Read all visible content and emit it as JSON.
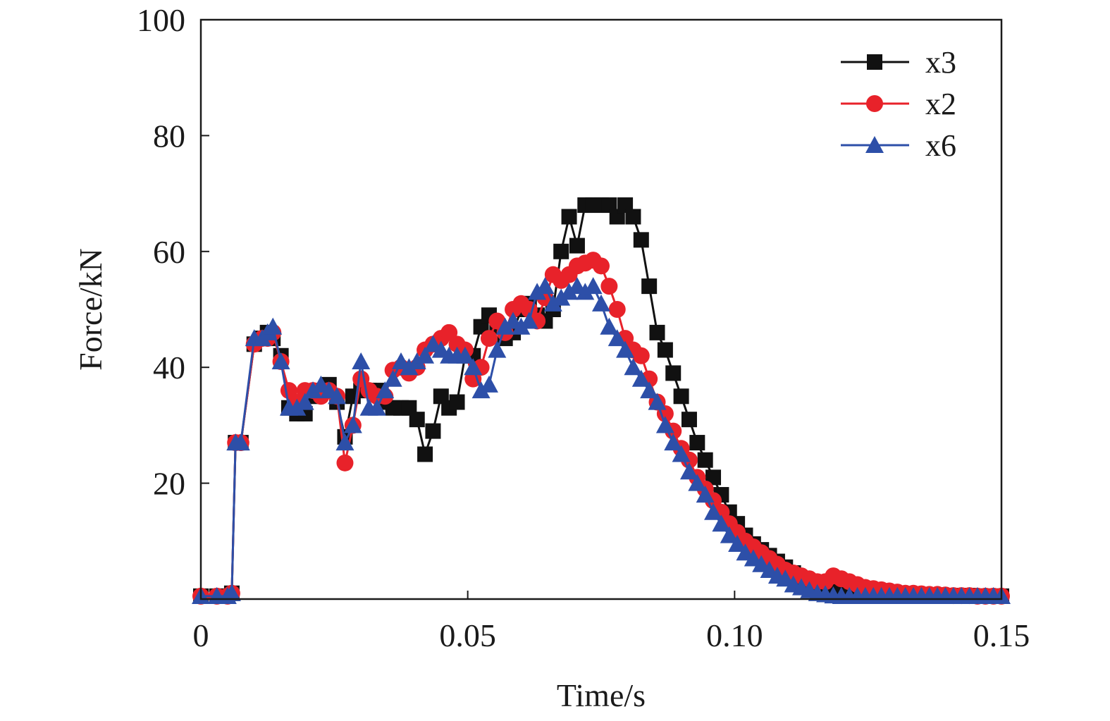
{
  "chart_data": {
    "type": "line",
    "xlabel": "Time/s",
    "ylabel": "Force/kN",
    "xlim": [
      0,
      0.15
    ],
    "ylim": [
      0,
      100
    ],
    "xticks": [
      0,
      0.05,
      0.1,
      0.15
    ],
    "xtick_labels": [
      "0",
      "0.05",
      "0.10",
      "0.15"
    ],
    "yticks": [
      20,
      40,
      60,
      80,
      100
    ],
    "ytick_labels": [
      "20",
      "40",
      "60",
      "80",
      "100"
    ],
    "grid": false,
    "legend_position": "top-right",
    "series": [
      {
        "name": "x3",
        "color": "#111111",
        "marker": "square",
        "x": [
          0,
          0.003,
          0.005,
          0.0058,
          0.0065,
          0.0075,
          0.01,
          0.0115,
          0.0125,
          0.0135,
          0.015,
          0.0165,
          0.018,
          0.0195,
          0.021,
          0.0225,
          0.024,
          0.0255,
          0.027,
          0.0285,
          0.03,
          0.0315,
          0.033,
          0.0345,
          0.036,
          0.0375,
          0.039,
          0.0405,
          0.042,
          0.0435,
          0.045,
          0.0465,
          0.048,
          0.0495,
          0.051,
          0.0525,
          0.054,
          0.0555,
          0.057,
          0.0585,
          0.06,
          0.0615,
          0.063,
          0.0645,
          0.066,
          0.0675,
          0.069,
          0.0705,
          0.072,
          0.0735,
          0.075,
          0.0765,
          0.078,
          0.0795,
          0.081,
          0.0825,
          0.084,
          0.0855,
          0.087,
          0.0885,
          0.09,
          0.0915,
          0.093,
          0.0945,
          0.096,
          0.0975,
          0.099,
          0.1005,
          0.102,
          0.1035,
          0.105,
          0.1065,
          0.108,
          0.1095,
          0.111,
          0.1125,
          0.114,
          0.1155,
          0.117,
          0.1185,
          0.12,
          0.1215,
          0.123,
          0.1245,
          0.126,
          0.1275,
          0.129,
          0.1305,
          0.132,
          0.1335,
          0.135,
          0.1365,
          0.138,
          0.1395,
          0.141,
          0.1425,
          0.144,
          0.1455,
          0.147,
          0.1485,
          0.15
        ],
        "y": [
          0.5,
          0.5,
          0.5,
          1,
          27,
          27,
          44,
          45,
          46,
          45,
          42,
          33,
          32,
          32,
          35,
          36,
          37,
          34,
          28,
          35,
          36,
          36,
          36,
          34,
          33,
          33,
          33,
          31,
          25,
          29,
          35,
          33,
          34,
          42,
          42,
          47,
          49,
          47,
          45,
          46,
          50,
          51,
          49,
          48,
          50,
          60,
          66,
          61,
          68,
          68,
          68,
          68,
          66,
          68,
          66,
          62,
          54,
          46,
          43,
          39,
          35,
          31,
          27,
          24,
          21,
          18,
          15,
          13,
          11,
          9.5,
          8.5,
          7.5,
          6.5,
          5.5,
          4.5,
          3.5,
          3,
          2.5,
          2,
          1.8,
          1.6,
          1.4,
          1.2,
          1.1,
          1,
          1,
          0.9,
          0.9,
          0.8,
          0.8,
          0.7,
          0.7,
          0.7,
          0.6,
          0.6,
          0.6,
          0.6,
          0.5,
          0.5,
          0.5,
          0.5
        ]
      },
      {
        "name": "x2",
        "color": "#e8222a",
        "marker": "circle",
        "x": [
          0,
          0.003,
          0.005,
          0.0058,
          0.0065,
          0.0075,
          0.01,
          0.0115,
          0.0125,
          0.0135,
          0.015,
          0.0165,
          0.018,
          0.0195,
          0.021,
          0.0225,
          0.024,
          0.0255,
          0.027,
          0.0285,
          0.03,
          0.0315,
          0.033,
          0.0345,
          0.036,
          0.0375,
          0.039,
          0.0405,
          0.042,
          0.0435,
          0.045,
          0.0465,
          0.048,
          0.0495,
          0.051,
          0.0525,
          0.054,
          0.0555,
          0.057,
          0.0585,
          0.06,
          0.0615,
          0.063,
          0.0645,
          0.066,
          0.0675,
          0.069,
          0.0705,
          0.072,
          0.0735,
          0.075,
          0.0765,
          0.078,
          0.0795,
          0.081,
          0.0825,
          0.084,
          0.0855,
          0.087,
          0.0885,
          0.09,
          0.0915,
          0.093,
          0.0945,
          0.096,
          0.0975,
          0.099,
          0.1005,
          0.102,
          0.1035,
          0.105,
          0.1065,
          0.108,
          0.1095,
          0.111,
          0.1125,
          0.114,
          0.1155,
          0.117,
          0.1185,
          0.12,
          0.1215,
          0.123,
          0.1245,
          0.126,
          0.1275,
          0.129,
          0.1305,
          0.132,
          0.1335,
          0.135,
          0.1365,
          0.138,
          0.1395,
          0.141,
          0.1425,
          0.144,
          0.1455,
          0.147,
          0.1485,
          0.15
        ],
        "y": [
          0.5,
          0.5,
          0.5,
          1,
          27,
          27,
          44,
          45,
          45,
          46,
          41,
          36,
          34,
          36,
          36,
          35,
          36,
          35,
          23.5,
          30,
          38,
          36,
          35,
          35,
          39.5,
          40,
          39,
          40,
          43,
          44,
          45,
          46,
          44,
          43,
          38,
          40,
          45,
          48,
          46,
          50,
          51,
          50,
          48,
          52,
          56,
          55,
          56,
          57.5,
          58,
          58.5,
          57.5,
          54,
          50,
          45,
          43,
          42,
          38,
          34,
          32,
          29,
          26,
          24,
          21,
          19,
          17,
          15,
          13,
          11.5,
          10,
          9,
          8,
          7,
          6,
          5,
          4.5,
          4,
          3.5,
          3,
          3,
          4,
          3.5,
          3,
          2.5,
          2,
          1.8,
          1.6,
          1.4,
          1.2,
          1,
          1,
          0.9,
          0.8,
          0.8,
          0.7,
          0.6,
          0.6,
          0.6,
          0.5,
          0.5,
          0.5,
          0.5
        ]
      },
      {
        "name": "x6",
        "color": "#2d4fa8",
        "marker": "triangle",
        "x": [
          0,
          0.003,
          0.005,
          0.0058,
          0.0065,
          0.0075,
          0.01,
          0.0115,
          0.0125,
          0.0135,
          0.015,
          0.0165,
          0.018,
          0.0195,
          0.021,
          0.0225,
          0.024,
          0.0255,
          0.027,
          0.0285,
          0.03,
          0.0315,
          0.033,
          0.0345,
          0.036,
          0.0375,
          0.039,
          0.0405,
          0.042,
          0.0435,
          0.045,
          0.0465,
          0.048,
          0.0495,
          0.051,
          0.0525,
          0.054,
          0.0555,
          0.057,
          0.0585,
          0.06,
          0.0615,
          0.063,
          0.0645,
          0.066,
          0.0675,
          0.069,
          0.0705,
          0.072,
          0.0735,
          0.075,
          0.0765,
          0.078,
          0.0795,
          0.081,
          0.0825,
          0.084,
          0.0855,
          0.087,
          0.0885,
          0.09,
          0.0915,
          0.093,
          0.0945,
          0.096,
          0.0975,
          0.099,
          0.1005,
          0.102,
          0.1035,
          0.105,
          0.1065,
          0.108,
          0.1095,
          0.111,
          0.1125,
          0.114,
          0.1155,
          0.117,
          0.1185,
          0.12,
          0.1215,
          0.123,
          0.1245,
          0.126,
          0.1275,
          0.129,
          0.1305,
          0.132,
          0.1335,
          0.135,
          0.1365,
          0.138,
          0.1395,
          0.141,
          0.1425,
          0.144,
          0.1455,
          0.147,
          0.1485,
          0.15
        ],
        "y": [
          0.5,
          0.5,
          0.5,
          1,
          27,
          27,
          45,
          45,
          46,
          47,
          41,
          33,
          33,
          34,
          36,
          37,
          36,
          35,
          27,
          30,
          41,
          33,
          33,
          36,
          38,
          41,
          40,
          41,
          42,
          44,
          43,
          42,
          42,
          42,
          40,
          36,
          37,
          43,
          47,
          48,
          47,
          48,
          53,
          54,
          51,
          52,
          53,
          54,
          53,
          54,
          51,
          47,
          45,
          43,
          40,
          38,
          36,
          34,
          30,
          27,
          25,
          22,
          20,
          18,
          15,
          13,
          11,
          9.5,
          8,
          7,
          6,
          5,
          4,
          3.5,
          2.5,
          2,
          1.5,
          1,
          0.8,
          0.6,
          0.5,
          0.5,
          0.5,
          0.5,
          0.5,
          0.5,
          0.5,
          0.5,
          0.5,
          0.5,
          0.5,
          0.5,
          0.5,
          0.5,
          0.5,
          0.5,
          0.5,
          0.5,
          0.5,
          0.5,
          0.5
        ]
      }
    ]
  }
}
